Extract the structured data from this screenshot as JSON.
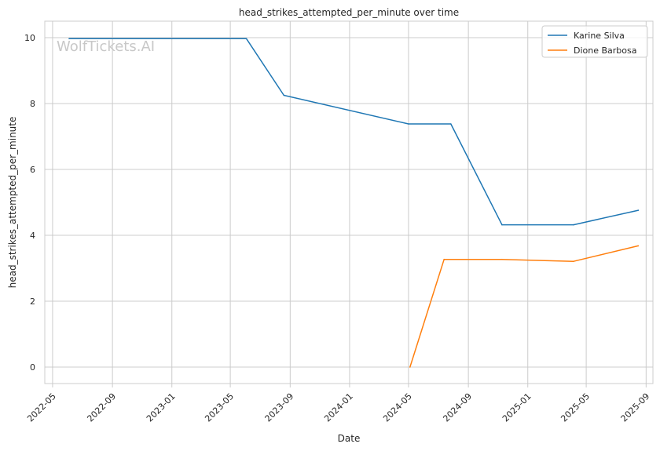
{
  "chart_data": {
    "type": "line",
    "title": "head_strikes_attempted_per_minute over time",
    "xlabel": "Date",
    "ylabel": "head_strikes_attempted_per_minute",
    "watermark": "WolfTickets.AI",
    "x_range": [
      "2022-04-15",
      "2025-09-15"
    ],
    "ylim": [
      -0.5,
      10.5
    ],
    "y_ticks": [
      0,
      2,
      4,
      6,
      8,
      10
    ],
    "x_ticks": [
      "2022-05",
      "2022-09",
      "2023-01",
      "2023-05",
      "2023-09",
      "2024-01",
      "2024-05",
      "2024-09",
      "2025-01",
      "2025-05",
      "2025-09"
    ],
    "grid": true,
    "legend_position": "top-right",
    "series": [
      {
        "name": "Karine Silva",
        "color": "#1f77b4",
        "points": [
          {
            "x": "2022-06-04",
            "y": 9.97
          },
          {
            "x": "2023-06-03",
            "y": 9.97
          },
          {
            "x": "2023-08-19",
            "y": 8.25
          },
          {
            "x": "2024-05-01",
            "y": 7.38
          },
          {
            "x": "2024-07-27",
            "y": 7.38
          },
          {
            "x": "2024-11-09",
            "y": 4.32
          },
          {
            "x": "2025-04-05",
            "y": 4.32
          },
          {
            "x": "2025-08-16",
            "y": 4.76
          }
        ]
      },
      {
        "name": "Dione Barbosa",
        "color": "#ff7f0e",
        "points": [
          {
            "x": "2024-05-04",
            "y": 0
          },
          {
            "x": "2024-07-13",
            "y": 3.27
          },
          {
            "x": "2024-11-09",
            "y": 3.27
          },
          {
            "x": "2025-04-05",
            "y": 3.21
          },
          {
            "x": "2025-08-16",
            "y": 3.68
          }
        ]
      }
    ]
  }
}
